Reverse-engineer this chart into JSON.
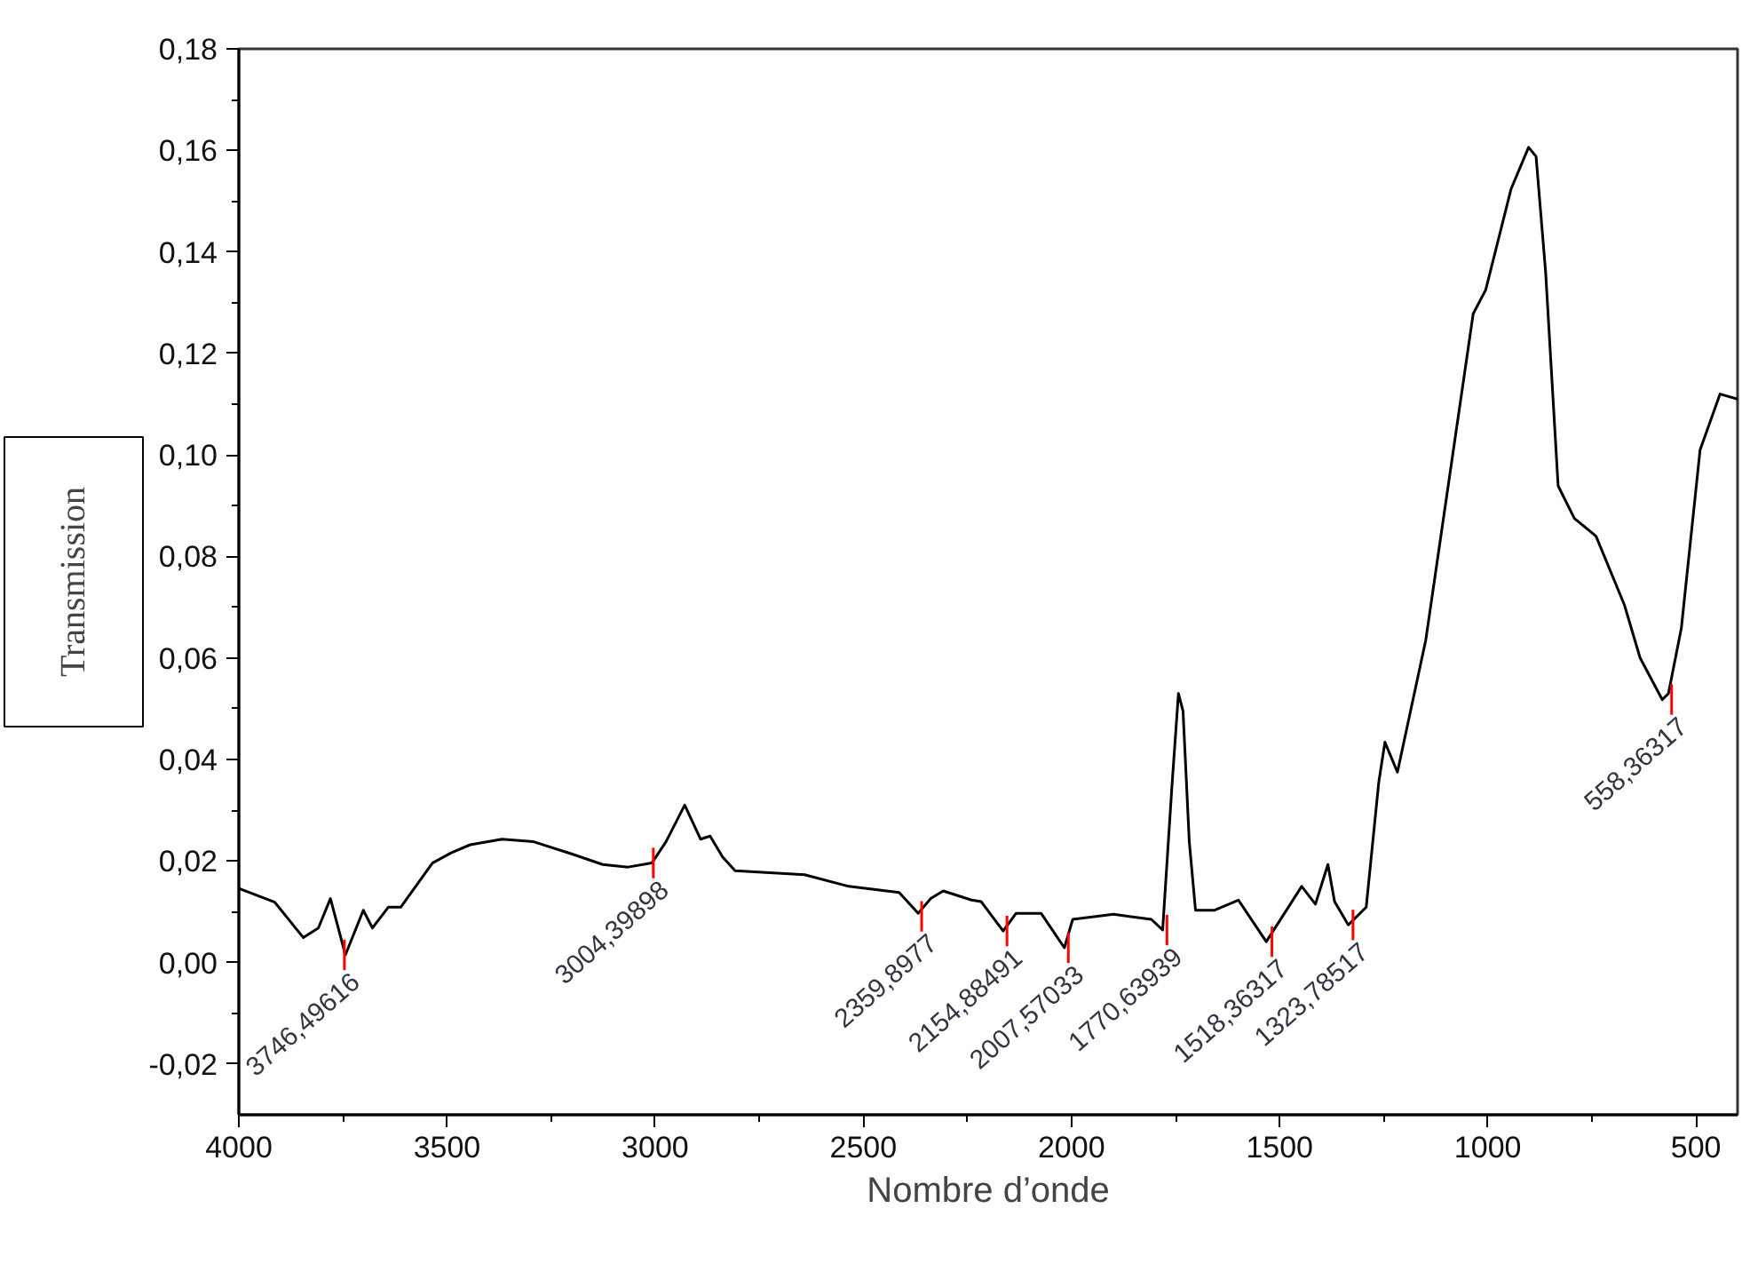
{
  "chart_data": {
    "type": "line",
    "xlabel": "Nombre d’onde",
    "ylabel": "Transmission",
    "xlim": [
      4000,
      400
    ],
    "ylim": [
      -0.03,
      0.18
    ],
    "xticks": [
      4000,
      3500,
      3000,
      2500,
      2000,
      1500,
      1000,
      500
    ],
    "yticks": [
      {
        "value": -0.02,
        "label": "-0,02"
      },
      {
        "value": 0.0,
        "label": "0,00"
      },
      {
        "value": 0.02,
        "label": "0,02"
      },
      {
        "value": 0.04,
        "label": "0,04"
      },
      {
        "value": 0.06,
        "label": "0,06"
      },
      {
        "value": 0.08,
        "label": "0,08"
      },
      {
        "value": 0.1,
        "label": "0,10"
      },
      {
        "value": 0.12,
        "label": "0,12"
      },
      {
        "value": 0.14,
        "label": "0,14"
      },
      {
        "value": 0.16,
        "label": "0,16"
      },
      {
        "value": 0.18,
        "label": "0,18"
      }
    ],
    "grid": false,
    "marker": "none",
    "line_style": "solid",
    "series": [
      {
        "color": "#000000",
        "x": [
          4000,
          3914,
          3845,
          3809,
          3780,
          3744,
          3701,
          3679,
          3641,
          3611,
          3535,
          3490,
          3444,
          3368,
          3292,
          3201,
          3126,
          3065,
          3008,
          2974,
          2929,
          2891,
          2868,
          2838,
          2808,
          2641,
          2535,
          2414,
          2368,
          2338,
          2308,
          2240,
          2217,
          2164,
          2133,
          2073,
          2017,
          1997,
          1899,
          1808,
          1781,
          1759,
          1743,
          1732,
          1717,
          1702,
          1656,
          1599,
          1532,
          1447,
          1414,
          1384,
          1368,
          1335,
          1292,
          1262,
          1247,
          1217,
          1149,
          1035,
          1005,
          944,
          902,
          884,
          861,
          831,
          792,
          740,
          672,
          634,
          581,
          566,
          535,
          490,
          442,
          400
        ],
        "values": [
          0.0146,
          0.0119,
          0.0049,
          0.0068,
          0.0126,
          0.0015,
          0.0103,
          0.0068,
          0.0109,
          0.0109,
          0.0196,
          0.0216,
          0.0232,
          0.0243,
          0.0238,
          0.0214,
          0.0193,
          0.0188,
          0.0196,
          0.0238,
          0.031,
          0.0243,
          0.0249,
          0.0208,
          0.0181,
          0.0173,
          0.015,
          0.0138,
          0.0097,
          0.0126,
          0.0141,
          0.0123,
          0.012,
          0.0062,
          0.0097,
          0.0097,
          0.0029,
          0.0085,
          0.0095,
          0.0085,
          0.0064,
          0.0343,
          0.053,
          0.0495,
          0.0238,
          0.0103,
          0.0103,
          0.0123,
          0.0041,
          0.015,
          0.0115,
          0.0193,
          0.012,
          0.0074,
          0.0109,
          0.0354,
          0.0434,
          0.0375,
          0.0635,
          0.1278,
          0.1325,
          0.1524,
          0.1606,
          0.1588,
          0.136,
          0.0939,
          0.0875,
          0.084,
          0.0705,
          0.06,
          0.0518,
          0.053,
          0.0659,
          0.101,
          0.112,
          0.111
        ]
      }
    ],
    "annotations": [
      {
        "text": "3746,49616",
        "x": 3746.49616,
        "y": 0.0015
      },
      {
        "text": "3004,39898",
        "x": 3004.39898,
        "y": 0.0196
      },
      {
        "text": "2359,8977",
        "x": 2359.8977,
        "y": 0.0091
      },
      {
        "text": "2154,88491",
        "x": 2154.88491,
        "y": 0.0062
      },
      {
        "text": "2007,57033",
        "x": 2007.57033,
        "y": 0.0029
      },
      {
        "text": "1770,63939",
        "x": 1770.63939,
        "y": 0.0064
      },
      {
        "text": "1518,36317",
        "x": 1518.36317,
        "y": 0.0041
      },
      {
        "text": "1323,78517",
        "x": 1323.78517,
        "y": 0.0074
      },
      {
        "text": "558,36317",
        "x": 558.36317,
        "y": 0.0518
      }
    ]
  }
}
